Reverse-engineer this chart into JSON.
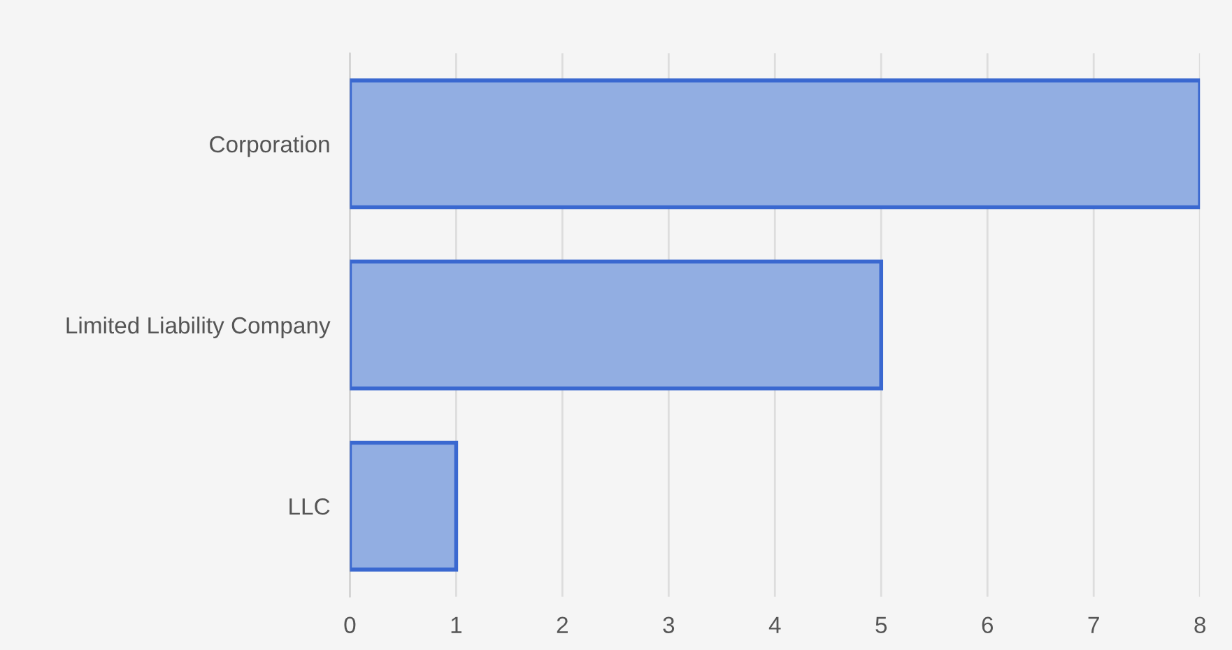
{
  "chart_data": {
    "type": "bar",
    "orientation": "horizontal",
    "categories": [
      "Corporation",
      "Limited Liability Company",
      "LLC"
    ],
    "values": [
      8,
      5,
      1
    ],
    "color": "#92aee2",
    "xlim": [
      0,
      8
    ],
    "xticks": [
      0,
      1,
      2,
      3,
      4,
      5,
      6,
      7,
      8
    ],
    "grid": "x",
    "legend": false
  }
}
